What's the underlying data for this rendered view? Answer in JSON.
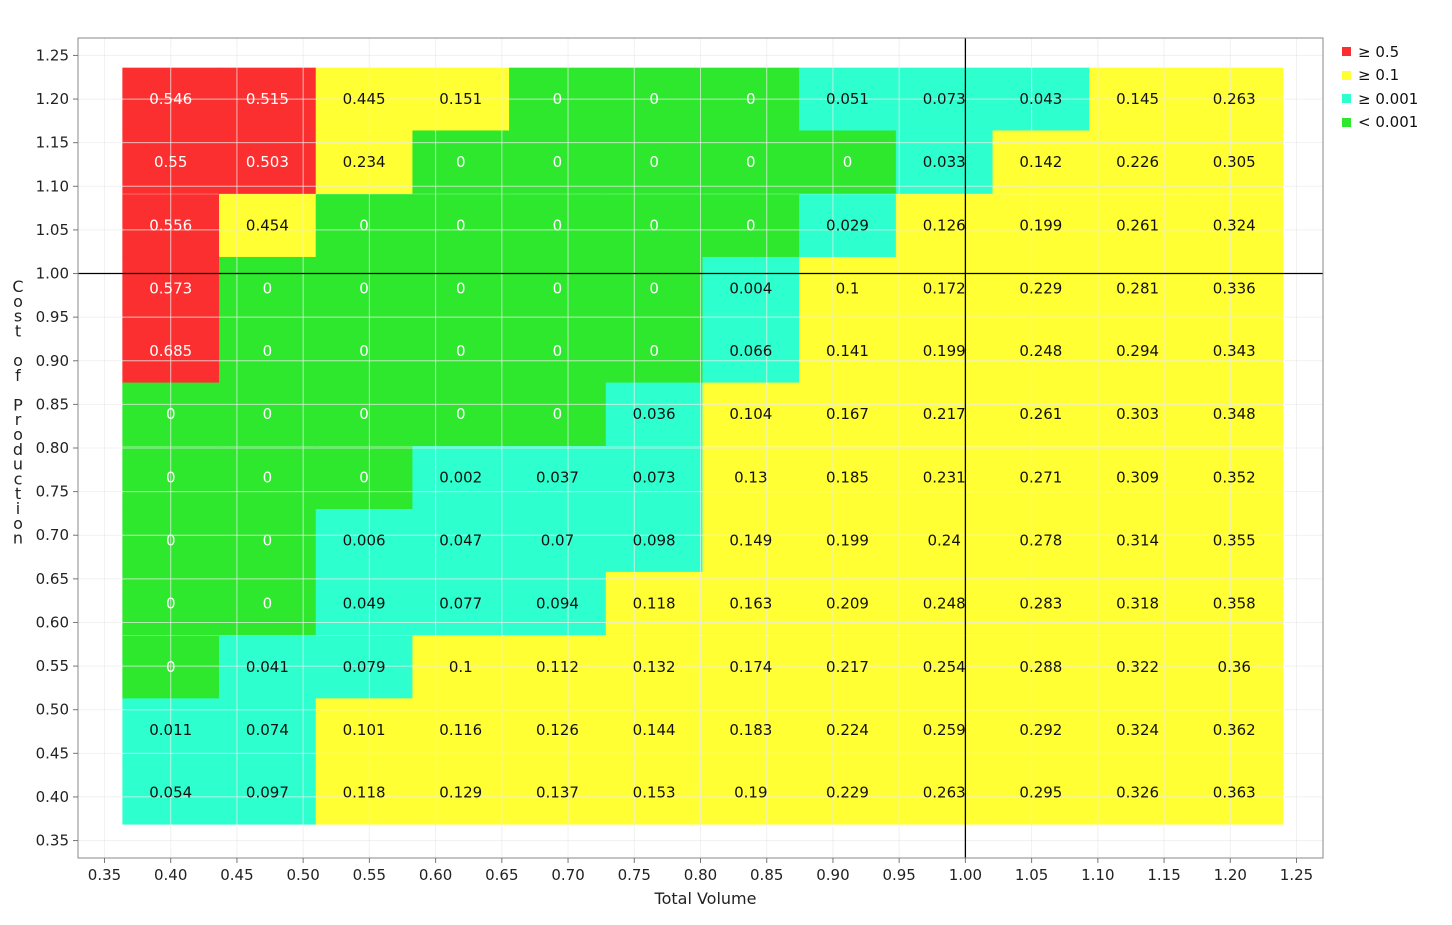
{
  "chart_data": {
    "type": "heatmap",
    "xlabel": "Total Volume",
    "ylabel": "Cost of Production",
    "xlim": [
      0.33,
      1.27
    ],
    "ylim": [
      0.33,
      1.27
    ],
    "x_ticks": [
      "0.35",
      "0.40",
      "0.45",
      "0.50",
      "0.55",
      "0.60",
      "0.65",
      "0.70",
      "0.75",
      "0.80",
      "0.85",
      "0.90",
      "0.95",
      "1.00",
      "1.05",
      "1.10",
      "1.15",
      "1.20",
      "1.25"
    ],
    "y_ticks": [
      "0.35",
      "0.40",
      "0.45",
      "0.50",
      "0.55",
      "0.60",
      "0.65",
      "0.70",
      "0.75",
      "0.80",
      "0.85",
      "0.90",
      "0.95",
      "1.00",
      "1.05",
      "1.10",
      "1.15",
      "1.20",
      "1.25"
    ],
    "crosshair": {
      "x": 1.0,
      "y": 1.0
    },
    "grid": true,
    "legend_position": "top-right",
    "legend": [
      {
        "label": "≥  0.5",
        "color": "#fb2f2f"
      },
      {
        "label": "≥  0.1",
        "color": "#ffff33"
      },
      {
        "label": "≥ 0.001",
        "color": "#2effce"
      },
      {
        "label": "< 0.001",
        "color": "#2ee82e"
      }
    ],
    "cell_x": [
      0.4,
      0.473,
      0.546,
      0.619,
      0.692,
      0.765,
      0.838,
      0.911,
      0.984,
      1.057,
      1.13,
      1.203
    ],
    "cell_y": [
      1.2,
      1.128,
      1.055,
      0.983,
      0.911,
      0.839,
      0.766,
      0.694,
      0.622,
      0.549,
      0.477,
      0.405
    ],
    "rows": [
      [
        "0.546",
        "0.515",
        "0.445",
        "0.151",
        "0",
        "0",
        "0",
        "0.051",
        "0.073",
        "0.043",
        "0.145",
        "0.263"
      ],
      [
        "0.55",
        "0.503",
        "0.234",
        "0",
        "0",
        "0",
        "0",
        "0",
        "0.033",
        "0.142",
        "0.226",
        "0.305"
      ],
      [
        "0.556",
        "0.454",
        "0",
        "0",
        "0",
        "0",
        "0",
        "0.029",
        "0.126",
        "0.199",
        "0.261",
        "0.324"
      ],
      [
        "0.573",
        "0",
        "0",
        "0",
        "0",
        "0",
        "0.004",
        "0.1",
        "0.172",
        "0.229",
        "0.281",
        "0.336"
      ],
      [
        "0.685",
        "0",
        "0",
        "0",
        "0",
        "0",
        "0.066",
        "0.141",
        "0.199",
        "0.248",
        "0.294",
        "0.343"
      ],
      [
        "0",
        "0",
        "0",
        "0",
        "0",
        "0.036",
        "0.104",
        "0.167",
        "0.217",
        "0.261",
        "0.303",
        "0.348"
      ],
      [
        "0",
        "0",
        "0",
        "0.002",
        "0.037",
        "0.073",
        "0.13",
        "0.185",
        "0.231",
        "0.271",
        "0.309",
        "0.352"
      ],
      [
        "0",
        "0",
        "0.006",
        "0.047",
        "0.07",
        "0.098",
        "0.149",
        "0.199",
        "0.24",
        "0.278",
        "0.314",
        "0.355"
      ],
      [
        "0",
        "0",
        "0.049",
        "0.077",
        "0.094",
        "0.118",
        "0.163",
        "0.209",
        "0.248",
        "0.283",
        "0.318",
        "0.358"
      ],
      [
        "0",
        "0.041",
        "0.079",
        "0.1",
        "0.112",
        "0.132",
        "0.174",
        "0.217",
        "0.254",
        "0.288",
        "0.322",
        "0.36"
      ],
      [
        "0.011",
        "0.074",
        "0.101",
        "0.116",
        "0.126",
        "0.144",
        "0.183",
        "0.224",
        "0.259",
        "0.292",
        "0.324",
        "0.362"
      ],
      [
        "0.054",
        "0.097",
        "0.118",
        "0.129",
        "0.137",
        "0.153",
        "0.19",
        "0.229",
        "0.263",
        "0.295",
        "0.326",
        "0.363"
      ]
    ]
  }
}
